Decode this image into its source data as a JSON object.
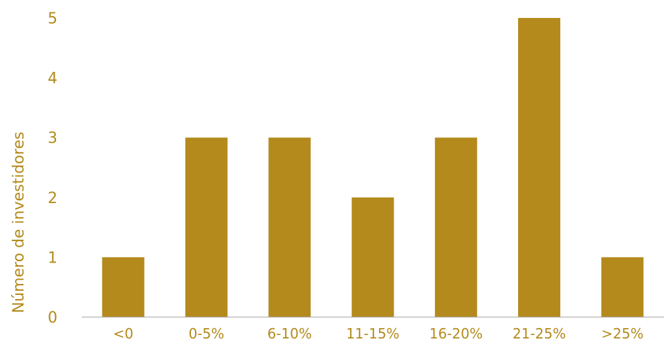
{
  "chart_data": {
    "type": "bar",
    "title": "",
    "xlabel": "",
    "ylabel": "Número de investidores",
    "categories": [
      "<0",
      "0-5%",
      "6-10%",
      "11-15%",
      "16-20%",
      "21-25%",
      ">25%"
    ],
    "values": [
      1,
      3,
      3,
      2,
      3,
      5,
      1
    ],
    "ylim": [
      0,
      5
    ],
    "yticks": [
      "0",
      "1",
      "2",
      "3",
      "4",
      "5"
    ],
    "grid": false,
    "legend": "none",
    "bar_color": "#b48a1c",
    "text_color": "#b48a1c",
    "axis_color": "#a0a0a0"
  }
}
